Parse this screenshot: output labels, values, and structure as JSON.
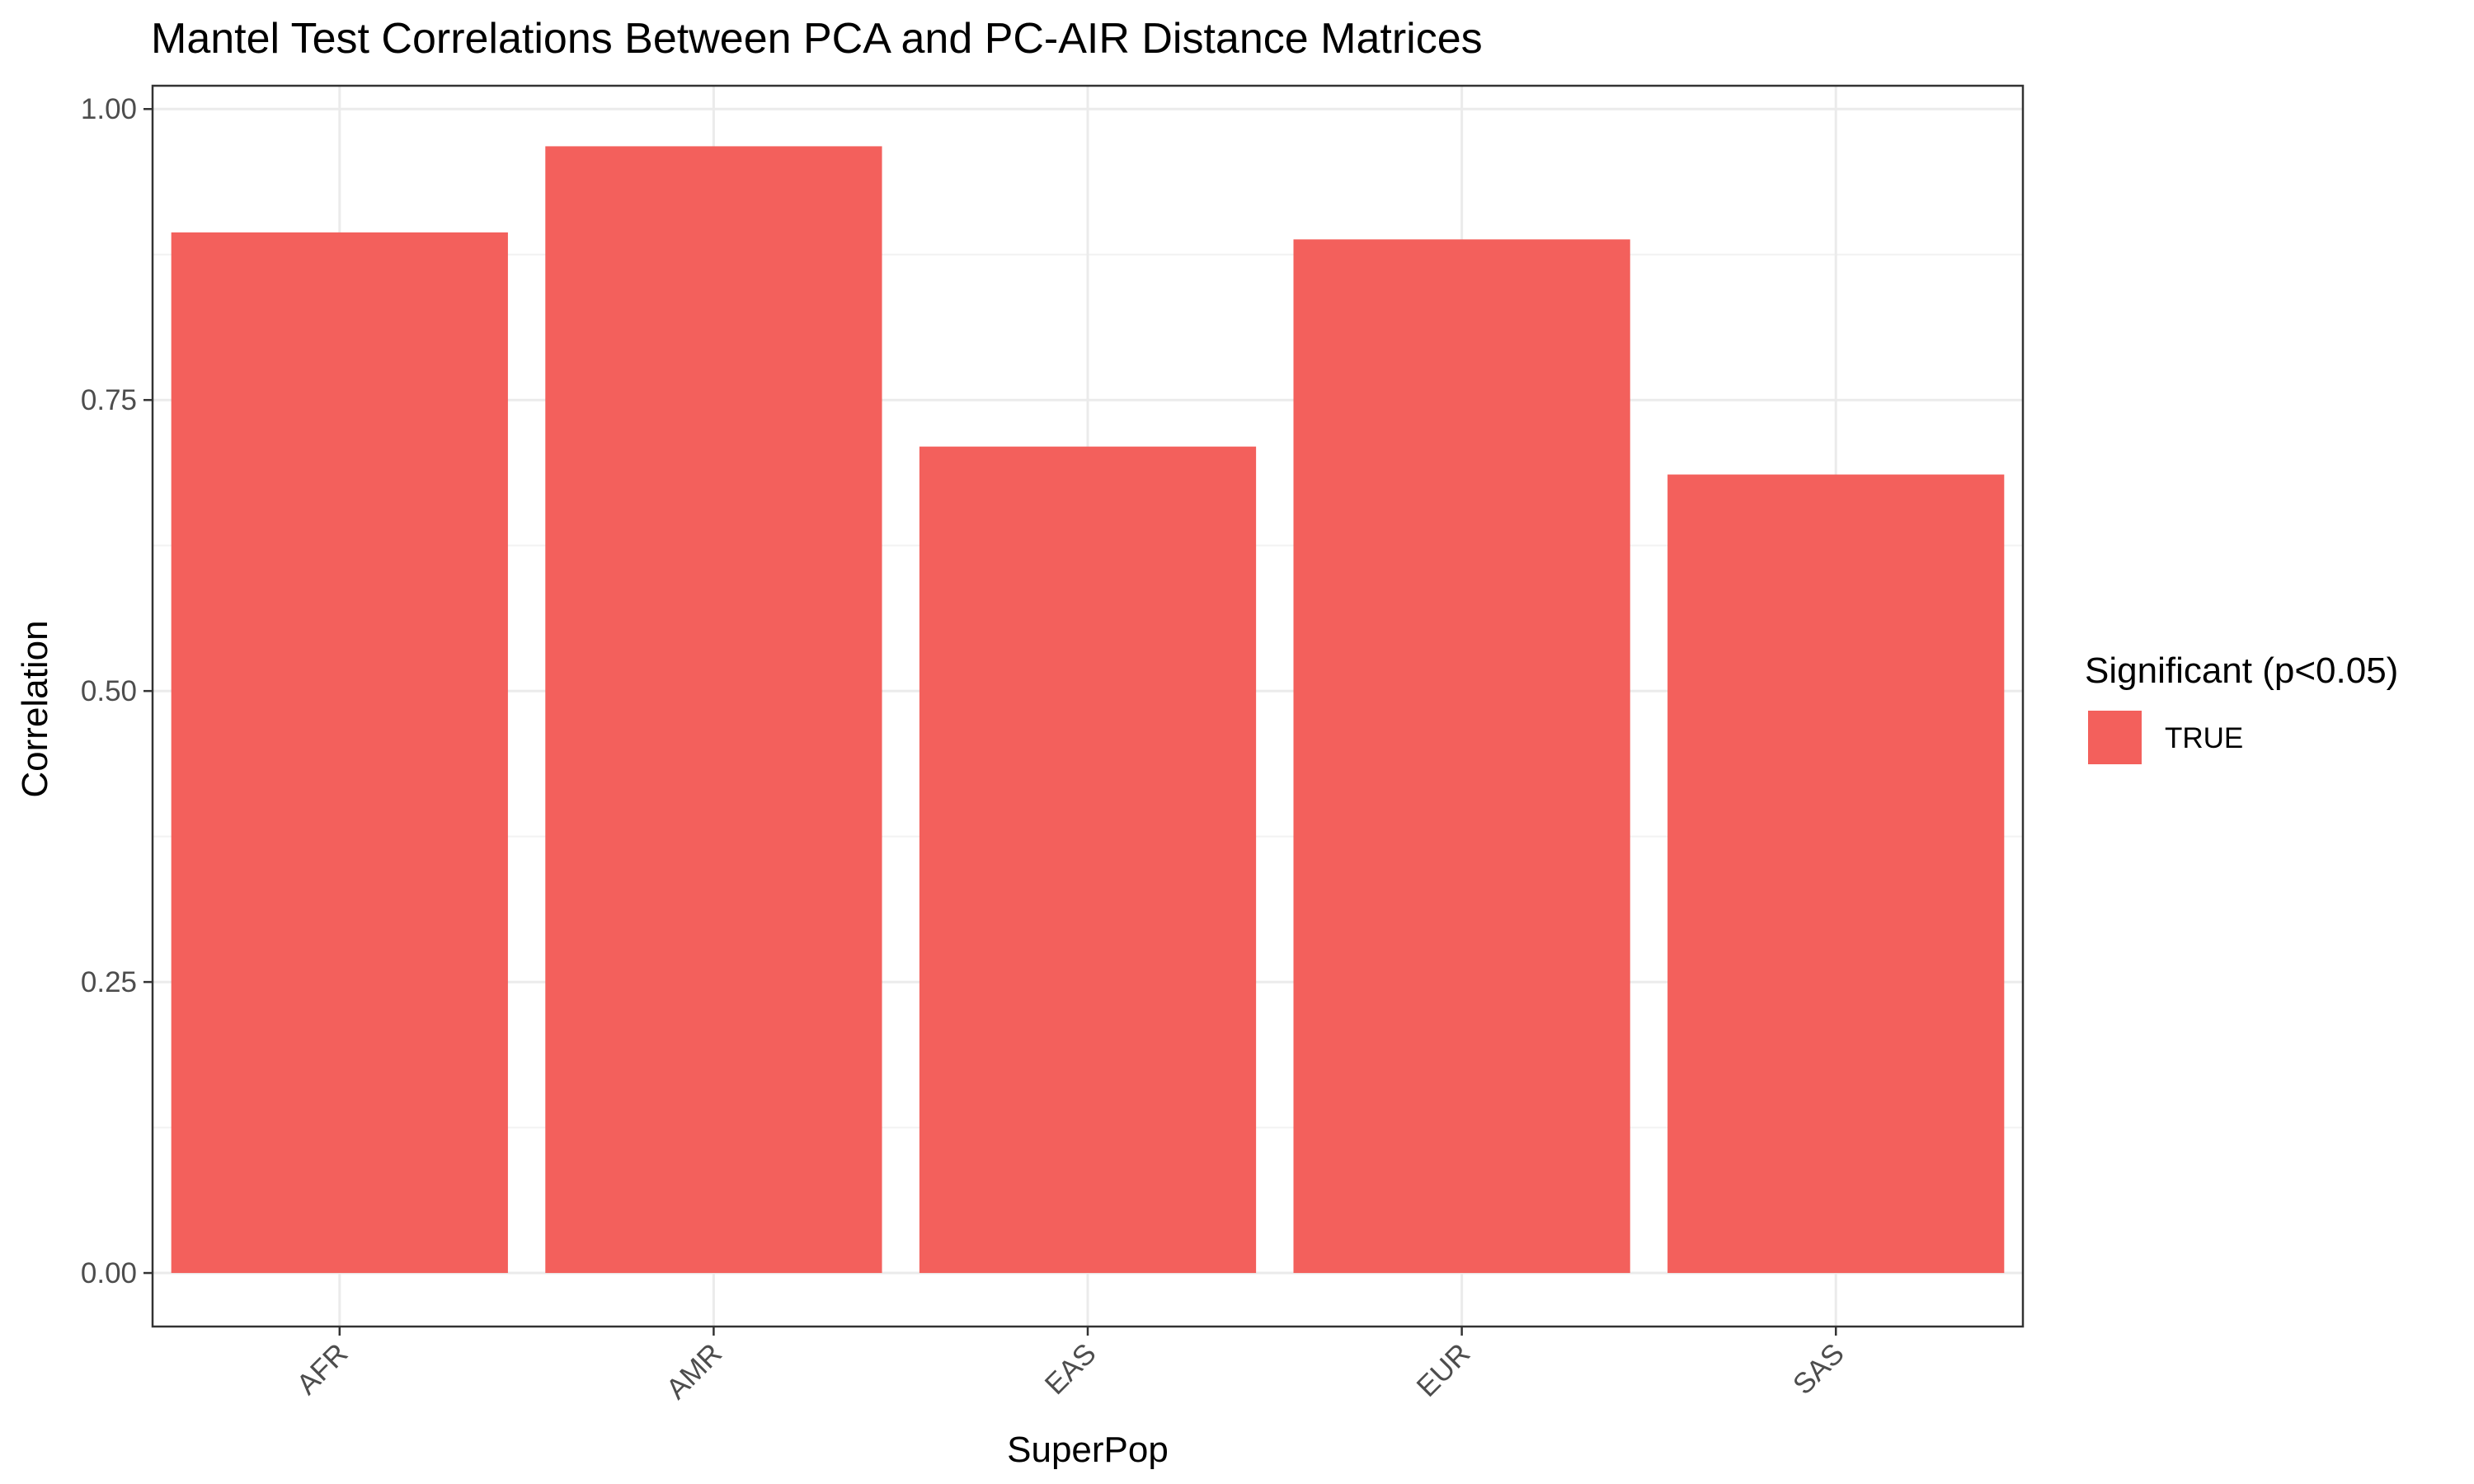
{
  "chart_data": {
    "type": "bar",
    "title": "Mantel Test Correlations Between PCA and PC-AIR Distance Matrices",
    "xlabel": "SuperPop",
    "ylabel": "Correlation",
    "categories": [
      "AFR",
      "AMR",
      "EAS",
      "EUR",
      "SAS"
    ],
    "series": [
      {
        "name": "TRUE",
        "values": [
          0.894,
          0.968,
          0.71,
          0.888,
          0.686
        ]
      }
    ],
    "ylim": [
      -0.046,
      1.02
    ],
    "yticks": [
      0.0,
      0.25,
      0.5,
      0.75,
      1.0
    ],
    "ytick_labels": [
      "0.00",
      "0.25",
      "0.50",
      "0.75",
      "1.00"
    ],
    "grid": true,
    "legend": {
      "title": "Significant (p<0.05)",
      "position": "right",
      "items": [
        {
          "label": "TRUE",
          "color": "#f3605c"
        }
      ]
    },
    "colors": {
      "bar": "#f3605c",
      "grid_major": "#ebebeb",
      "grid_minor": "#f2f2f2",
      "panel_border": "#333333"
    }
  }
}
